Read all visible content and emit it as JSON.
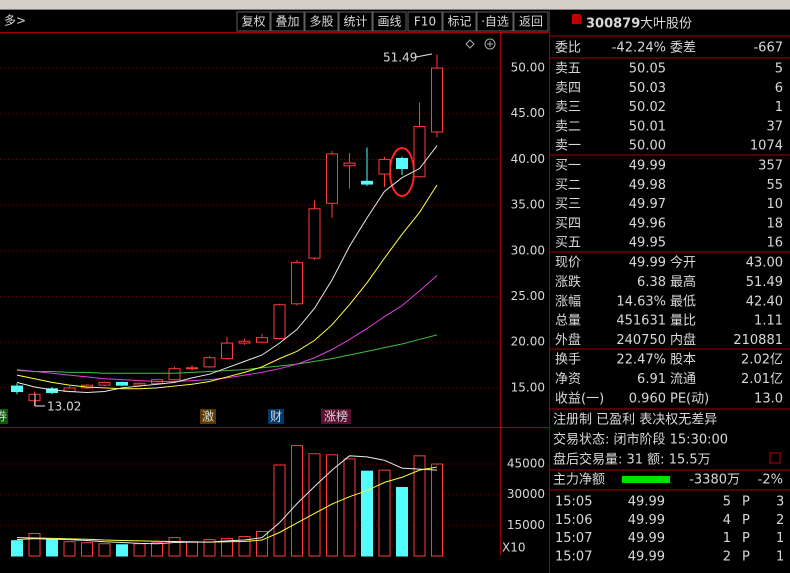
{
  "toolbar": {
    "left": "多>",
    "buttons": [
      "复权",
      "叠加",
      "多股",
      "统计",
      "画线",
      "F10",
      "标记",
      "·自选",
      "返回"
    ]
  },
  "chart": {
    "ylim": [
      10.94,
      53.61
    ],
    "yticks": [
      {
        "value": 50,
        "label": "50.00"
      },
      {
        "value": 45,
        "label": "45.00"
      },
      {
        "value": 40,
        "label": "40.00"
      },
      {
        "value": 35,
        "label": "35.00"
      },
      {
        "value": 30,
        "label": "30.00"
      },
      {
        "value": 25,
        "label": "25.00"
      },
      {
        "value": 20,
        "label": "20.00"
      },
      {
        "value": 15,
        "label": "15.00"
      }
    ],
    "high_label": "51.49",
    "low_label": "13.02",
    "candles": [
      [
        15.2,
        14.6,
        15.5,
        14.3
      ],
      [
        13.6,
        14.3,
        14.6,
        13.02
      ],
      [
        14.9,
        14.5,
        15.1,
        14.3
      ],
      [
        14.6,
        15.0,
        15.2,
        14.5
      ],
      [
        15.0,
        15.3,
        15.4,
        14.9
      ],
      [
        15.3,
        15.6,
        15.7,
        15.2
      ],
      [
        15.6,
        15.3,
        15.7,
        15.2
      ],
      [
        15.3,
        15.5,
        15.6,
        15.2
      ],
      [
        15.5,
        15.9,
        16.0,
        15.4
      ],
      [
        15.9,
        17.1,
        17.3,
        15.8
      ],
      [
        17.1,
        17.2,
        17.5,
        16.9
      ],
      [
        17.3,
        18.3,
        18.5,
        17.2
      ],
      [
        18.2,
        19.9,
        20.6,
        18.1
      ],
      [
        19.9,
        20.1,
        20.4,
        19.7
      ],
      [
        20.0,
        20.5,
        20.9,
        19.9
      ],
      [
        20.4,
        24.1,
        24.2,
        20.3
      ],
      [
        24.2,
        28.7,
        29.0,
        24.0
      ],
      [
        29.2,
        34.6,
        35.5,
        29.0
      ],
      [
        35.2,
        40.6,
        40.9,
        33.6
      ],
      [
        39.3,
        39.6,
        40.7,
        36.8
      ],
      [
        37.6,
        37.3,
        41.3,
        37.1
      ],
      [
        38.4,
        40.0,
        40.3,
        37.0
      ],
      [
        40.1,
        39.0,
        40.3,
        38.3
      ],
      [
        38.1,
        43.6,
        46.2,
        38.0
      ],
      [
        43.0,
        49.99,
        51.49,
        42.4
      ]
    ],
    "ma5": [
      15.6,
      15.1,
      14.8,
      14.6,
      14.5,
      14.6,
      15.0,
      15.2,
      15.4,
      15.6,
      16.1,
      16.5,
      17.2,
      17.9,
      18.6,
      19.9,
      21.4,
      23.7,
      26.8,
      30.5,
      33.6,
      36.5,
      38.0,
      39.0,
      41.5
    ],
    "ma10": [
      16.4,
      16.0,
      15.6,
      15.3,
      15.1,
      15.0,
      14.9,
      14.9,
      15.0,
      15.2,
      15.4,
      15.7,
      16.2,
      16.7,
      17.3,
      18.2,
      19.0,
      20.2,
      21.9,
      24.1,
      26.5,
      29.2,
      31.8,
      34.2,
      37.2
    ],
    "ma20": [
      17.0,
      16.8,
      16.6,
      16.4,
      16.2,
      16.0,
      15.9,
      15.8,
      15.7,
      15.7,
      15.8,
      15.9,
      16.1,
      16.4,
      16.7,
      17.1,
      17.6,
      18.3,
      19.2,
      20.3,
      21.5,
      22.8,
      24.0,
      25.6,
      27.3
    ],
    "ma60": [
      16.9,
      16.8,
      16.8,
      16.7,
      16.7,
      16.6,
      16.6,
      16.6,
      16.6,
      16.6,
      16.7,
      16.8,
      16.9,
      17.0,
      17.2,
      17.4,
      17.6,
      17.9,
      18.2,
      18.6,
      19.0,
      19.4,
      19.8,
      20.3,
      20.8
    ],
    "vlim": [
      0,
      60650
    ],
    "vticks": [
      45000,
      30000,
      15000
    ],
    "volume": [
      7500,
      11000,
      8000,
      7000,
      6500,
      6000,
      5500,
      6000,
      6500,
      9000,
      7000,
      8000,
      8500,
      9500,
      12000,
      44500,
      54000,
      50000,
      49500,
      47500,
      41500,
      42000,
      33500,
      49000,
      45000
    ],
    "vol_ma5": [
      8000,
      8500,
      8200,
      8000,
      7600,
      7000,
      6600,
      6200,
      6000,
      6600,
      6800,
      6800,
      7400,
      7800,
      9000,
      16300,
      25600,
      34000,
      42000,
      49000,
      48500,
      46800,
      43000,
      42500,
      42000
    ],
    "vol_ma10": [
      9000,
      8800,
      8600,
      8400,
      8200,
      7800,
      7600,
      7400,
      7200,
      7100,
      6900,
      6800,
      7000,
      7100,
      7800,
      11500,
      16200,
      20800,
      25400,
      29000,
      32000,
      36000,
      38500,
      42000,
      43500
    ],
    "tags": [
      "券",
      "激",
      "财",
      "涨榜"
    ],
    "vol_scale": "X10"
  },
  "quote": {
    "code": "300879",
    "name": "大叶股份",
    "ratio": [
      "委比",
      "-42.24%",
      "委差",
      "-667"
    ],
    "asks": [
      [
        "卖五",
        "50.05",
        "5"
      ],
      [
        "卖四",
        "50.03",
        "6"
      ],
      [
        "卖三",
        "50.02",
        "1"
      ],
      [
        "卖二",
        "50.01",
        "37"
      ],
      [
        "卖一",
        "50.00",
        "1074"
      ]
    ],
    "bids": [
      [
        "买一",
        "49.99",
        "357"
      ],
      [
        "买二",
        "49.98",
        "55"
      ],
      [
        "买三",
        "49.97",
        "10"
      ],
      [
        "买四",
        "49.96",
        "18"
      ],
      [
        "买五",
        "49.95",
        "16"
      ]
    ],
    "stats": [
      [
        "现价",
        "49.99",
        "今开",
        "43.00"
      ],
      [
        "涨跌",
        "6.38",
        "最高",
        "51.49"
      ],
      [
        "涨幅",
        "14.63%",
        "最低",
        "42.40"
      ],
      [
        "总量",
        "451631",
        "量比",
        "1.11"
      ],
      [
        "外盘",
        "240750",
        "内盘",
        "210881"
      ],
      [
        "换手",
        "22.47%",
        "股本",
        "2.02亿"
      ],
      [
        "净资",
        "6.91",
        "流通",
        "2.01亿"
      ],
      [
        "收益(一)",
        "0.960",
        "PE(动)",
        "13.0"
      ]
    ],
    "tags": "注册制 已盈利 表决权无差异",
    "status": "交易状态: 闭市阶段 15:30:00",
    "after_hours": "盘后交易量: 31  额: 15.5万",
    "main_net": [
      "主力净额",
      "-3380万",
      "-2%"
    ],
    "trades": [
      [
        "15:05",
        "49.99",
        "5",
        "P",
        "3"
      ],
      [
        "15:06",
        "49.99",
        "4",
        "P",
        "2"
      ],
      [
        "15:07",
        "49.99",
        "1",
        "P",
        "1"
      ],
      [
        "15:07",
        "49.99",
        "2",
        "P",
        "1"
      ]
    ]
  }
}
